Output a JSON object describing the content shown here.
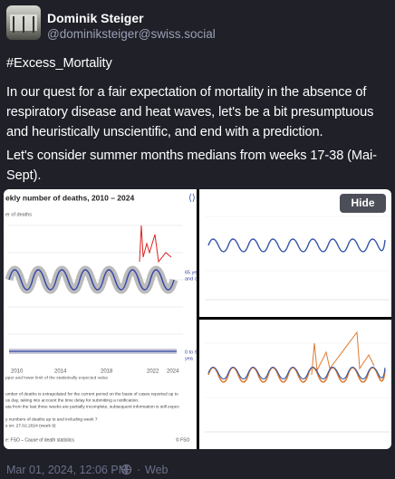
{
  "post": {
    "author": {
      "name": "Dominik Steiger",
      "handle": "@dominiksteiger@swiss.social"
    },
    "hashtag": "#Excess_Mortality",
    "paragraphs": [
      [
        "In our quest for a fair expectation of mortality in the absence of",
        "respiratory disease and heat waves, let's be a bit presumptuous",
        "and heuristically unscientific, and end with a prediction."
      ],
      [
        "Let's consider summer months medians from weeks 17-38 (Mai-",
        "Sept)."
      ]
    ],
    "media": {
      "hide_button": "Hide",
      "left_image": {
        "title": "ekly number of deaths, 2010 – 2024",
        "y_label": "er of deaths",
        "x_ticks": [
          "2010",
          "2014",
          "2018",
          "2022",
          "2024"
        ],
        "series_labels": [
          [
            "65 ye",
            "and o"
          ],
          [
            "0 to 6",
            "yea"
          ]
        ],
        "legend": "pper and lower limit of the statistically expected value",
        "notes": [
          "umber of deaths is extrapolated for the current period on the basis of cases reported up to",
          "us day, taking into account the time delay for submitting a notification.",
          "ata from the last three weeks are partially incomplete, subsequent information is still expec",
          "y numbers of deaths up to and including week 7",
          "s on: 27.02.2024 (week 9)"
        ],
        "source": "e: FSO – Cause of death statistics",
        "credit": "© FSO"
      }
    },
    "timestamp": "Mar 01, 2024, 12:06 PM",
    "separator": "·",
    "client": "Web"
  }
}
